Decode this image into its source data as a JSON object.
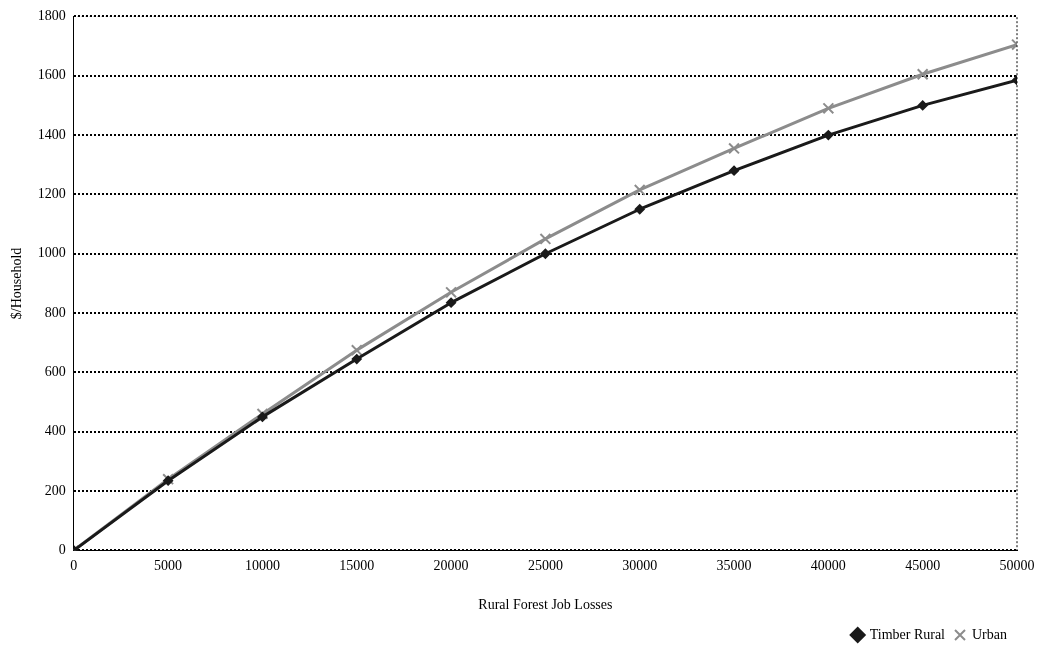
{
  "chart_data": {
    "type": "line",
    "xlabel": "Rural Forest Job Losses",
    "ylabel": "$/Household",
    "xlim": [
      0,
      50000
    ],
    "xticks": [
      0,
      5000,
      10000,
      15000,
      20000,
      25000,
      30000,
      35000,
      40000,
      45000,
      50000
    ],
    "ylim": [
      0,
      1800
    ],
    "yticks": [
      0,
      200,
      400,
      600,
      800,
      1000,
      1200,
      1400,
      1600,
      1800
    ],
    "grid": "y",
    "legend": "bottom right",
    "line_style": "solid",
    "x": [
      0,
      5000,
      10000,
      15000,
      20000,
      25000,
      30000,
      35000,
      40000,
      45000,
      50000
    ],
    "series": [
      {
        "name": "Timber Rural",
        "color": "#1a1a1a",
        "marker": "diamond",
        "values": [
          0,
          235,
          450,
          645,
          835,
          1000,
          1150,
          1280,
          1400,
          1500,
          1585
        ]
      },
      {
        "name": "Urban",
        "color": "#8c8c8c",
        "marker": "cross",
        "values": [
          0,
          240,
          460,
          675,
          870,
          1050,
          1215,
          1355,
          1490,
          1605,
          1705
        ]
      }
    ]
  }
}
